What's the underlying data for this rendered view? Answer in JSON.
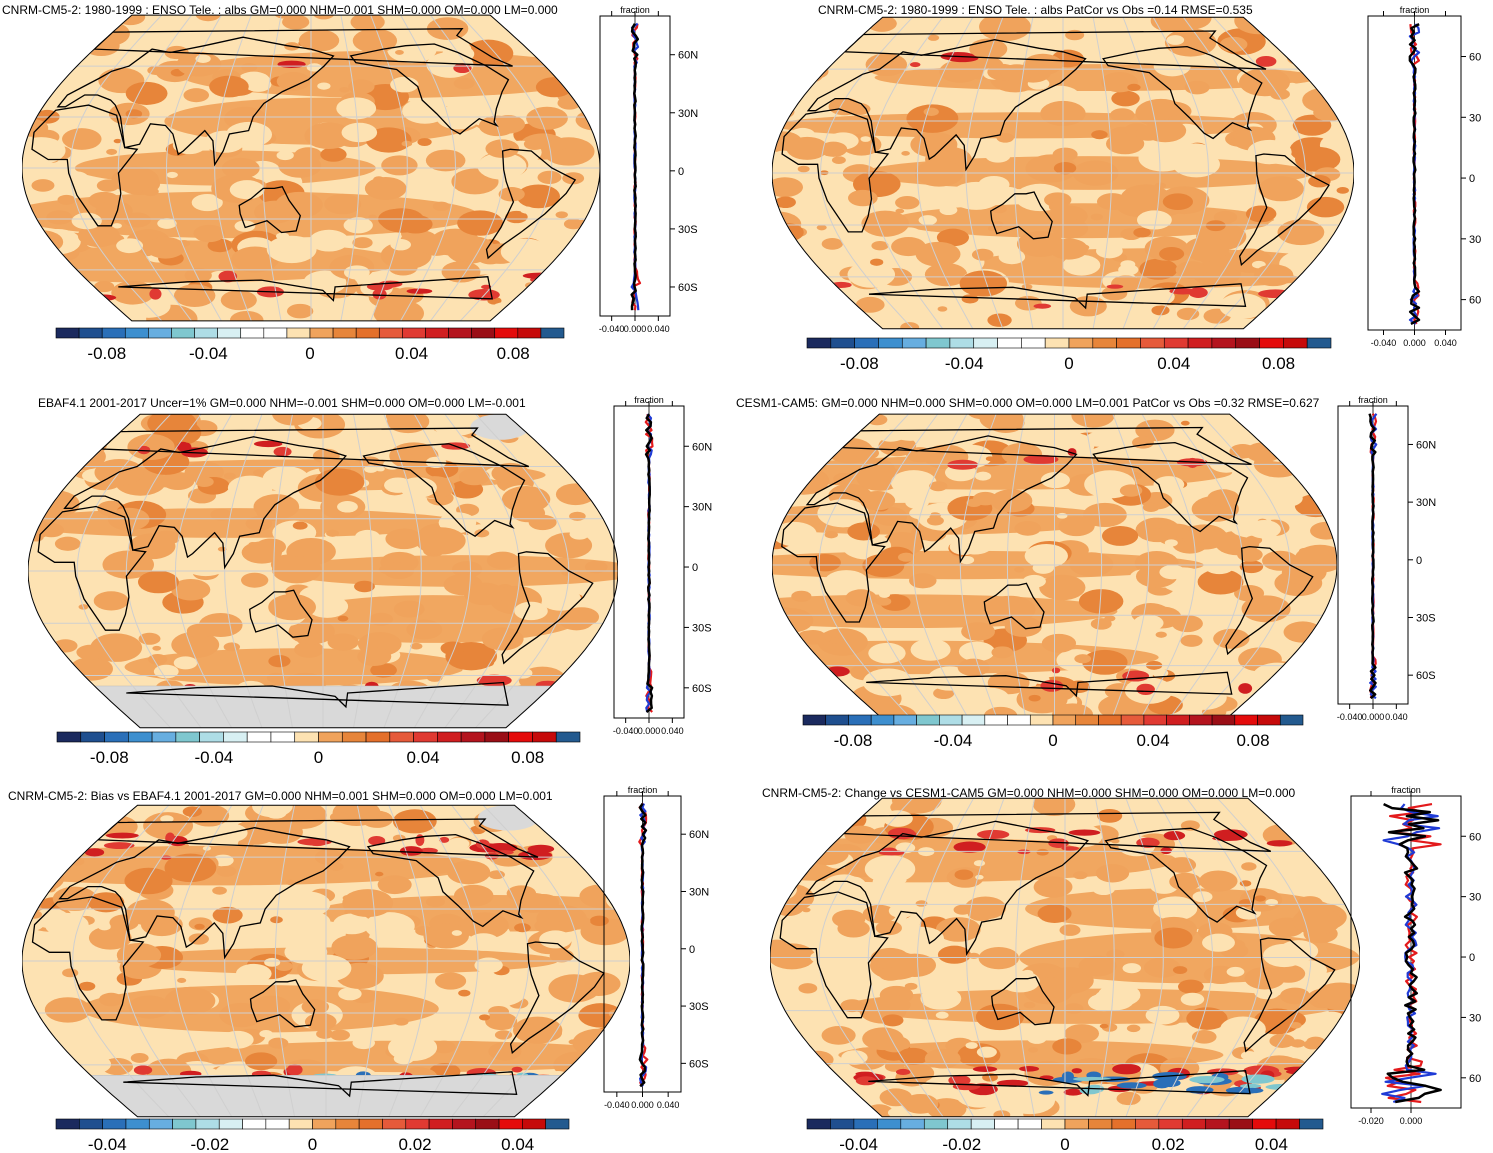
{
  "colors": {
    "blues": [
      "#1b2a5e",
      "#1f4f8f",
      "#2a6fb8",
      "#3d8fcf",
      "#67aee0",
      "#7fc7cf",
      "#aedde6",
      "#d8f0f3"
    ],
    "white": "#ffffff",
    "oranges": [
      "#fde2b2",
      "#f0a35c",
      "#e7853a",
      "#e4702b",
      "#e65a3a",
      "#e03a32",
      "#d01e20",
      "#b4141e",
      "#9a0e16",
      "#e40b0b",
      "#c60a0a"
    ],
    "edge_blue": "#235a8f",
    "land_line": "#000000",
    "grid_line": "#cfcfcf",
    "missing": "#d9d9d9",
    "profile_obs": "#000000",
    "profile_a": "#e31a1c",
    "profile_b": "#1f3bd6"
  },
  "chart_data": [
    {
      "type": "heatmap",
      "title": "CNRM-CM5-2: 1980-1999 : ENSO Tele. : albs GM=0.000 NHM=0.001 SHM=0.000 OM=0.000 LM=0.000",
      "colorbar_ticks": [
        "-0.08",
        "-0.04",
        "0",
        "0.04",
        "0.08"
      ],
      "colorbar_range": [
        -0.1,
        0.1
      ],
      "profile": {
        "label": "fraction",
        "x_ticks": [
          "-0.040",
          "0.000",
          "0.040"
        ],
        "y_ticks": [
          "60N",
          "30N",
          "0",
          "30S",
          "60S"
        ],
        "xlim": [
          -0.06,
          0.06
        ],
        "ylim": [
          -75,
          80
        ]
      }
    },
    {
      "type": "heatmap",
      "title": "CNRM-CM5-2: 1980-1999 : ENSO Tele. : albs PatCor vs Obs =0.14 RMSE=0.535",
      "colorbar_ticks": [
        "-0.08",
        "-0.04",
        "0",
        "0.04",
        "0.08"
      ],
      "colorbar_range": [
        -0.1,
        0.1
      ],
      "profile": {
        "label": "fraction",
        "x_ticks": [
          "-0.040",
          "0.000",
          "0.040"
        ],
        "y_ticks": [
          "60",
          "30",
          "0",
          "30",
          "60"
        ],
        "xlim": [
          -0.06,
          0.06
        ],
        "ylim": [
          -75,
          80
        ]
      }
    },
    {
      "type": "heatmap",
      "title": "EBAF4.1 2001-2017 Uncer=1% GM=0.000 NHM=-0.001 SHM=0.000 OM=0.000 LM=-0.001",
      "colorbar_ticks": [
        "-0.08",
        "-0.04",
        "0",
        "0.04",
        "0.08"
      ],
      "colorbar_range": [
        -0.1,
        0.1
      ],
      "profile": {
        "label": "fraction",
        "x_ticks": [
          "-0.040",
          "0.000",
          "0.040"
        ],
        "y_ticks": [
          "60N",
          "30N",
          "0",
          "30S",
          "60S"
        ],
        "xlim": [
          -0.06,
          0.06
        ],
        "ylim": [
          -75,
          80
        ]
      }
    },
    {
      "type": "heatmap",
      "title": "CESM1-CAM5: GM=0.000 NHM=0.000 SHM=0.000 OM=0.000 LM=0.001 PatCor vs Obs =0.32 RMSE=0.627",
      "colorbar_ticks": [
        "-0.08",
        "-0.04",
        "0",
        "0.04",
        "0.08"
      ],
      "colorbar_range": [
        -0.1,
        0.1
      ],
      "profile": {
        "label": "fraction",
        "x_ticks": [
          "-0.040",
          "0.000",
          "0.040"
        ],
        "y_ticks": [
          "60N",
          "30N",
          "0",
          "30S",
          "60S"
        ],
        "xlim": [
          -0.06,
          0.06
        ],
        "ylim": [
          -75,
          80
        ]
      }
    },
    {
      "type": "heatmap",
      "title": "CNRM-CM5-2: Bias vs EBAF4.1 2001-2017 GM=0.000 NHM=0.001 SHM=0.000 OM=0.000 LM=0.001",
      "colorbar_ticks": [
        "-0.04",
        "-0.02",
        "0",
        "0.02",
        "0.04"
      ],
      "colorbar_range": [
        -0.05,
        0.05
      ],
      "profile": {
        "label": "fraction",
        "x_ticks": [
          "-0.040",
          "0.000",
          "0.040"
        ],
        "y_ticks": [
          "60N",
          "30N",
          "0",
          "30S",
          "60S"
        ],
        "xlim": [
          -0.06,
          0.06
        ],
        "ylim": [
          -75,
          80
        ]
      }
    },
    {
      "type": "heatmap",
      "title": "CNRM-CM5-2: Change vs CESM1-CAM5 GM=0.000 NHM=0.000 SHM=0.000 OM=0.000 LM=0.000",
      "colorbar_ticks": [
        "-0.04",
        "-0.02",
        "0",
        "0.02",
        "0.04"
      ],
      "colorbar_range": [
        -0.05,
        0.05
      ],
      "profile": {
        "label": "fraction",
        "x_ticks": [
          "-0.020",
          "0.000"
        ],
        "y_ticks": [
          "60",
          "30",
          "0",
          "30",
          "60"
        ],
        "xlim": [
          -0.03,
          0.025
        ],
        "ylim": [
          -75,
          80
        ]
      }
    }
  ]
}
